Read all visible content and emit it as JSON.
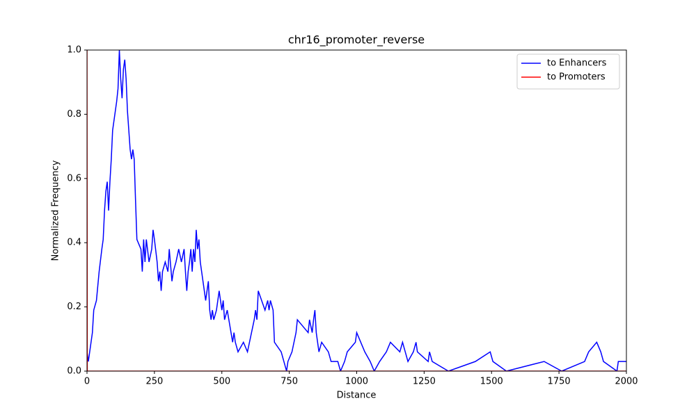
{
  "chart_data": {
    "type": "line",
    "title": "chr16_promoter_reverse",
    "x_label": "Distance",
    "y_label": "Normalized Frequency",
    "xlim": [
      0,
      2000
    ],
    "ylim": [
      0,
      1
    ],
    "xticks": [
      0,
      250,
      500,
      750,
      1000,
      1250,
      1500,
      1750,
      2000
    ],
    "yticks": [
      {
        "value": 0,
        "label": "0.0"
      },
      {
        "value": 0.2,
        "label": "0.2"
      },
      {
        "value": 0.4,
        "label": "0.4"
      },
      {
        "value": 0.6,
        "label": "0.6"
      },
      {
        "value": 0.8,
        "label": "0.8"
      },
      {
        "value": 1,
        "label": "1.0"
      }
    ],
    "legend": "upper right",
    "series": [
      {
        "name": "to Enhancers",
        "color": "#0000ff",
        "x": [
          0,
          5,
          10,
          15,
          20,
          25,
          35,
          45,
          55,
          60,
          65,
          70,
          75,
          80,
          85,
          90,
          95,
          100,
          105,
          110,
          115,
          120,
          125,
          130,
          135,
          140,
          145,
          150,
          155,
          160,
          165,
          170,
          175,
          180,
          185,
          200,
          205,
          210,
          215,
          220,
          230,
          240,
          245,
          250,
          260,
          265,
          270,
          275,
          280,
          290,
          300,
          305,
          315,
          320,
          330,
          340,
          350,
          360,
          365,
          370,
          375,
          380,
          385,
          390,
          395,
          400,
          405,
          410,
          415,
          420,
          425,
          430,
          440,
          445,
          450,
          455,
          460,
          465,
          470,
          480,
          490,
          500,
          505,
          510,
          520,
          540,
          545,
          550,
          560,
          580,
          595,
          610,
          620,
          625,
          630,
          635,
          660,
          670,
          675,
          680,
          690,
          695,
          720,
          740,
          745,
          760,
          775,
          780,
          820,
          825,
          835,
          840,
          845,
          850,
          860,
          870,
          895,
          905,
          930,
          940,
          955,
          965,
          995,
          1000,
          1015,
          1030,
          1050,
          1065,
          1085,
          1110,
          1125,
          1160,
          1170,
          1180,
          1190,
          1210,
          1220,
          1225,
          1265,
          1270,
          1280,
          1340,
          1440,
          1495,
          1505,
          1555,
          1695,
          1760,
          1845,
          1860,
          1890,
          1905,
          1915,
          1965,
          1970,
          2000
        ],
        "values": [
          0.06,
          0.03,
          0.06,
          0.09,
          0.12,
          0.19,
          0.22,
          0.31,
          0.38,
          0.41,
          0.5,
          0.56,
          0.59,
          0.5,
          0.59,
          0.66,
          0.75,
          0.78,
          0.81,
          0.84,
          0.88,
          1.0,
          0.91,
          0.85,
          0.94,
          0.97,
          0.91,
          0.81,
          0.75,
          0.69,
          0.66,
          0.69,
          0.66,
          0.53,
          0.41,
          0.38,
          0.31,
          0.41,
          0.34,
          0.41,
          0.34,
          0.38,
          0.44,
          0.41,
          0.34,
          0.28,
          0.31,
          0.25,
          0.31,
          0.34,
          0.31,
          0.38,
          0.28,
          0.31,
          0.34,
          0.38,
          0.34,
          0.38,
          0.31,
          0.25,
          0.31,
          0.34,
          0.38,
          0.31,
          0.38,
          0.34,
          0.44,
          0.38,
          0.41,
          0.34,
          0.31,
          0.28,
          0.22,
          0.25,
          0.28,
          0.19,
          0.16,
          0.19,
          0.16,
          0.19,
          0.25,
          0.19,
          0.22,
          0.16,
          0.19,
          0.09,
          0.12,
          0.09,
          0.06,
          0.09,
          0.06,
          0.12,
          0.16,
          0.19,
          0.16,
          0.25,
          0.19,
          0.22,
          0.19,
          0.22,
          0.19,
          0.09,
          0.06,
          0.0,
          0.03,
          0.06,
          0.12,
          0.16,
          0.12,
          0.16,
          0.12,
          0.16,
          0.19,
          0.12,
          0.06,
          0.09,
          0.06,
          0.03,
          0.03,
          0.0,
          0.03,
          0.06,
          0.09,
          0.12,
          0.09,
          0.06,
          0.03,
          0.0,
          0.03,
          0.06,
          0.09,
          0.06,
          0.09,
          0.06,
          0.03,
          0.06,
          0.09,
          0.06,
          0.03,
          0.06,
          0.03,
          0.0,
          0.03,
          0.06,
          0.03,
          0.0,
          0.03,
          0.0,
          0.03,
          0.06,
          0.09,
          0.06,
          0.03,
          0.0,
          0.03,
          0.03
        ]
      },
      {
        "name": "to Promoters",
        "color": "#ff0000",
        "x": [
          0,
          1,
          2000
        ],
        "values": [
          1,
          0,
          0
        ]
      }
    ]
  }
}
